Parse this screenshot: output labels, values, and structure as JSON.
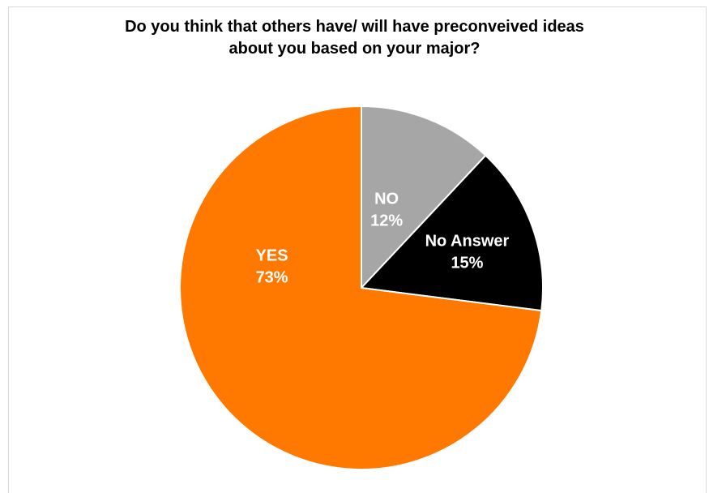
{
  "chart_data": {
    "type": "pie",
    "title": [
      "Do you think that others have/ will have preconveived ideas",
      "about you based on your major?"
    ],
    "slices": [
      {
        "label": "NO",
        "percent_label": "12%",
        "value": 12,
        "color": "#a6a6a6",
        "label_color": "#ffffff"
      },
      {
        "label": "No Answer",
        "percent_label": "15%",
        "value": 15,
        "color": "#000000",
        "label_color": "#ffffff"
      },
      {
        "label": "YES",
        "percent_label": "73%",
        "value": 73,
        "color": "#ff7800",
        "label_color": "#ffffff"
      }
    ],
    "start_angle": "12 o'clock",
    "direction": "clockwise"
  }
}
